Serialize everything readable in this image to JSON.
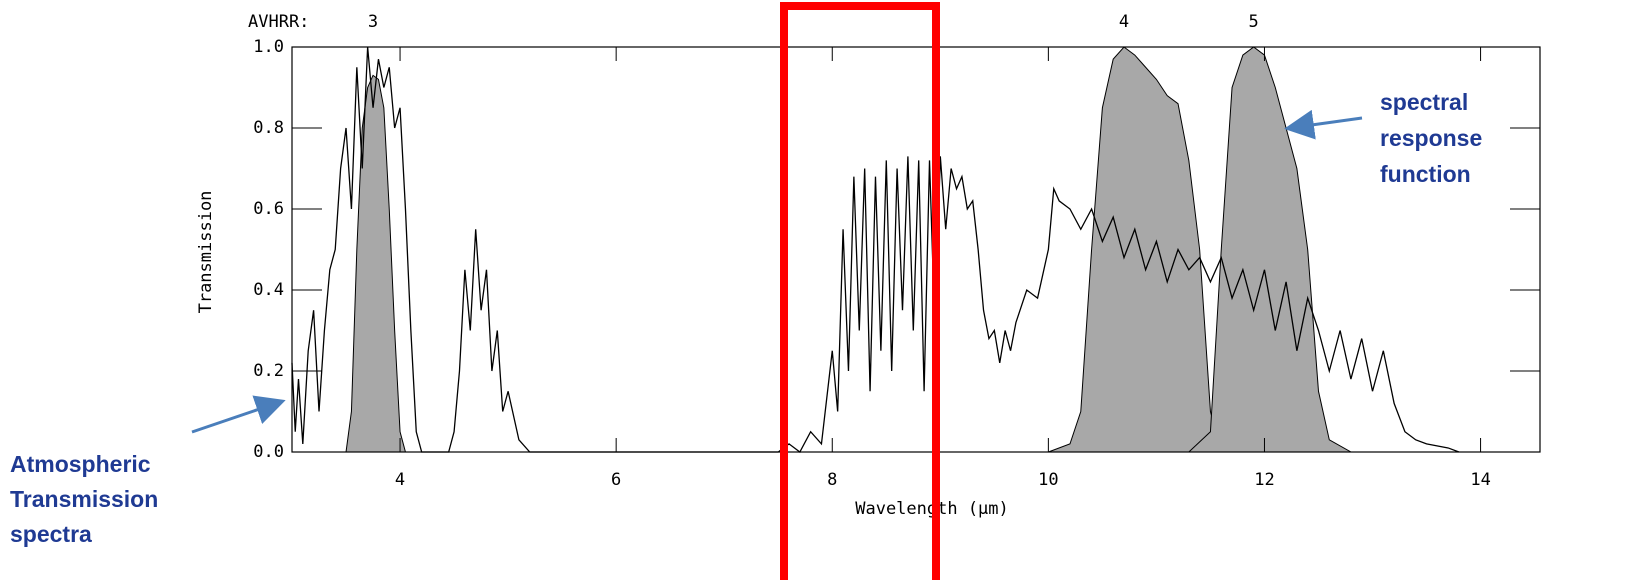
{
  "chart_data": {
    "type": "line",
    "band_label": "AVHRR:",
    "ylabel": "Transmission",
    "xlabel": "Wavelength (μm)",
    "xlim": [
      3,
      14.55
    ],
    "ylim": [
      0,
      1
    ],
    "xticks": [
      4,
      6,
      8,
      10,
      12,
      14
    ],
    "yticks": [
      {
        "value": 0,
        "label": "0.0"
      },
      {
        "value": 0.2,
        "label": "0.2"
      },
      {
        "value": 0.4,
        "label": "0.4"
      },
      {
        "value": 0.6,
        "label": "0.6"
      },
      {
        "value": 0.8,
        "label": "0.8"
      },
      {
        "value": 1,
        "label": "1.0"
      }
    ],
    "series": [
      {
        "color": "#000000",
        "x": [
          3.0,
          3.03,
          3.06,
          3.1,
          3.15,
          3.2,
          3.25,
          3.3,
          3.35,
          3.4,
          3.45,
          3.5,
          3.55,
          3.6,
          3.65,
          3.7,
          3.75,
          3.8,
          3.85,
          3.9,
          3.95,
          4.0,
          4.05,
          4.1,
          4.15,
          4.2,
          4.45,
          4.5,
          4.55,
          4.6,
          4.65,
          4.7,
          4.75,
          4.8,
          4.85,
          4.9,
          4.95,
          5.0,
          5.1,
          5.2,
          7.5,
          7.6,
          7.7,
          7.8,
          7.9,
          8.0,
          8.05,
          8.1,
          8.15,
          8.2,
          8.25,
          8.3,
          8.35,
          8.4,
          8.45,
          8.5,
          8.55,
          8.6,
          8.65,
          8.7,
          8.75,
          8.8,
          8.85,
          8.9,
          8.95,
          9.0,
          9.05,
          9.1,
          9.15,
          9.2,
          9.25,
          9.3,
          9.35,
          9.4,
          9.45,
          9.5,
          9.55,
          9.6,
          9.65,
          9.7,
          9.8,
          9.9,
          10.0,
          10.05,
          10.1,
          10.2,
          10.3,
          10.4,
          10.5,
          10.6,
          10.7,
          10.8,
          10.9,
          11.0,
          11.1,
          11.2,
          11.3,
          11.4,
          11.5,
          11.6,
          11.7,
          11.8,
          11.9,
          12.0,
          12.1,
          12.2,
          12.3,
          12.4,
          12.5,
          12.6,
          12.7,
          12.8,
          12.9,
          13.0,
          13.1,
          13.2,
          13.3,
          13.4,
          13.5,
          13.7,
          13.8
        ],
        "values": [
          0.22,
          0.05,
          0.18,
          0.02,
          0.25,
          0.35,
          0.1,
          0.3,
          0.45,
          0.5,
          0.7,
          0.8,
          0.6,
          0.95,
          0.7,
          1.0,
          0.85,
          0.97,
          0.9,
          0.95,
          0.8,
          0.85,
          0.6,
          0.3,
          0.05,
          0.0,
          0.0,
          0.05,
          0.2,
          0.45,
          0.3,
          0.55,
          0.35,
          0.45,
          0.2,
          0.3,
          0.1,
          0.15,
          0.03,
          0.0,
          0.0,
          0.02,
          0.0,
          0.05,
          0.02,
          0.25,
          0.1,
          0.55,
          0.2,
          0.68,
          0.3,
          0.7,
          0.15,
          0.68,
          0.25,
          0.72,
          0.2,
          0.7,
          0.35,
          0.73,
          0.3,
          0.72,
          0.15,
          0.72,
          0.3,
          0.73,
          0.55,
          0.7,
          0.65,
          0.68,
          0.6,
          0.62,
          0.5,
          0.35,
          0.28,
          0.3,
          0.22,
          0.3,
          0.25,
          0.32,
          0.4,
          0.38,
          0.5,
          0.65,
          0.62,
          0.6,
          0.55,
          0.6,
          0.52,
          0.58,
          0.48,
          0.55,
          0.45,
          0.52,
          0.42,
          0.5,
          0.45,
          0.48,
          0.42,
          0.48,
          0.38,
          0.45,
          0.35,
          0.45,
          0.3,
          0.42,
          0.25,
          0.38,
          0.3,
          0.2,
          0.3,
          0.18,
          0.28,
          0.15,
          0.25,
          0.12,
          0.05,
          0.03,
          0.02,
          0.01,
          0.0
        ]
      }
    ],
    "areas": [
      {
        "name": "3",
        "color": "#a8a8a8",
        "x": [
          3.5,
          3.55,
          3.6,
          3.65,
          3.7,
          3.75,
          3.8,
          3.85,
          3.9,
          3.95,
          4.0,
          4.05
        ],
        "values": [
          0,
          0.1,
          0.5,
          0.8,
          0.9,
          0.93,
          0.92,
          0.85,
          0.6,
          0.3,
          0.05,
          0
        ]
      },
      {
        "name": "4",
        "color": "#a8a8a8",
        "x": [
          10.0,
          10.2,
          10.3,
          10.4,
          10.5,
          10.6,
          10.7,
          10.8,
          10.9,
          11.0,
          11.1,
          11.2,
          11.3,
          11.4,
          11.5,
          11.6
        ],
        "values": [
          0,
          0.02,
          0.1,
          0.5,
          0.85,
          0.97,
          1.0,
          0.98,
          0.95,
          0.92,
          0.88,
          0.86,
          0.72,
          0.5,
          0.1,
          0
        ]
      },
      {
        "name": "5",
        "color": "#a8a8a8",
        "x": [
          11.3,
          11.5,
          11.6,
          11.7,
          11.8,
          11.9,
          12.0,
          12.1,
          12.2,
          12.3,
          12.4,
          12.5,
          12.6,
          12.8
        ],
        "values": [
          0,
          0.05,
          0.5,
          0.9,
          0.98,
          1.0,
          0.98,
          0.9,
          0.8,
          0.7,
          0.5,
          0.15,
          0.03,
          0
        ]
      }
    ],
    "annotations": [
      {
        "lines": [
          "spectral",
          "response",
          "function"
        ]
      },
      {
        "lines": [
          "Atmospheric",
          "Transmission",
          "spectra"
        ]
      }
    ]
  }
}
